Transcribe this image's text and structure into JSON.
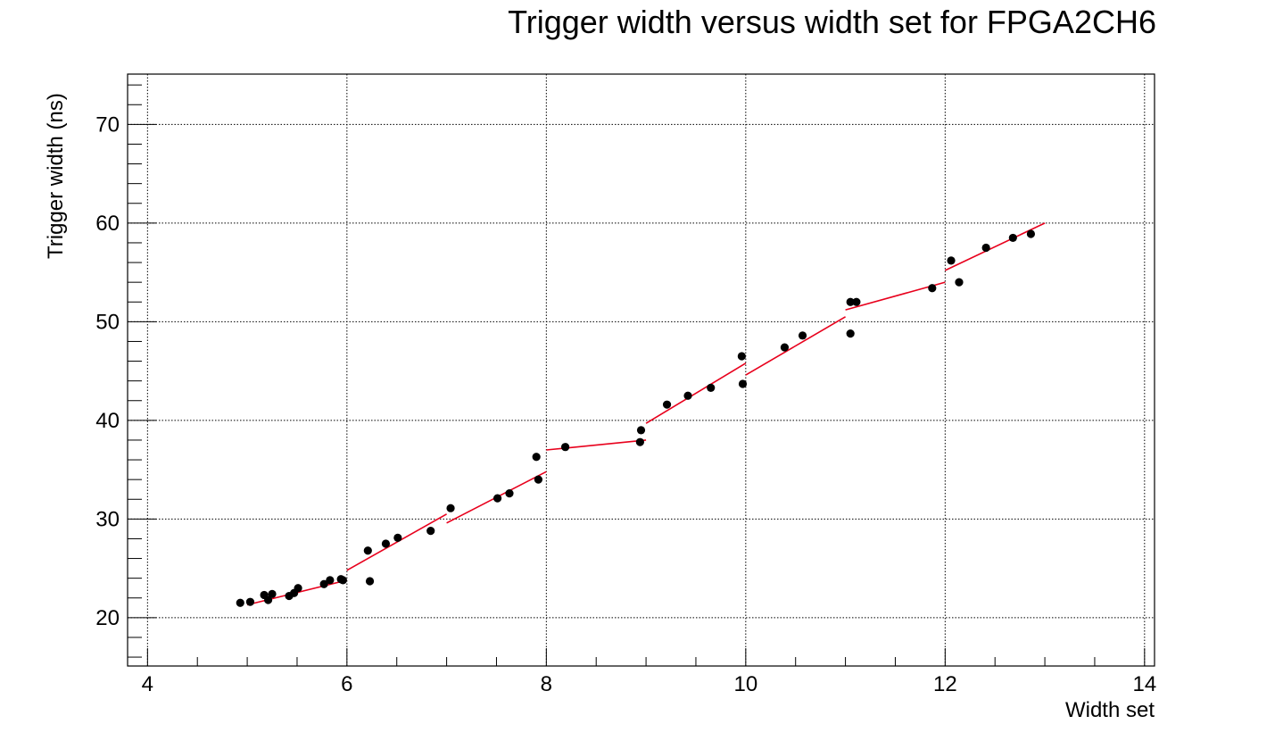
{
  "chart_data": {
    "type": "scatter",
    "title": "Trigger width versus width set for FPGA2CH6",
    "xlabel": "Width set",
    "ylabel": "Trigger width (ns)",
    "xlim": [
      3.8,
      14.1
    ],
    "ylim": [
      15.1,
      75.1
    ],
    "xticks": [
      4,
      6,
      8,
      10,
      12,
      14
    ],
    "yticks": [
      20,
      30,
      40,
      50,
      60,
      70
    ],
    "grid": true,
    "marker_color": "#000000",
    "fit_color": "#e8001c",
    "points": [
      {
        "x": 4.93,
        "y": 21.5
      },
      {
        "x": 5.03,
        "y": 21.6
      },
      {
        "x": 5.17,
        "y": 22.3
      },
      {
        "x": 5.21,
        "y": 21.8
      },
      {
        "x": 5.25,
        "y": 22.4
      },
      {
        "x": 5.42,
        "y": 22.2
      },
      {
        "x": 5.47,
        "y": 22.5
      },
      {
        "x": 5.51,
        "y": 23.0
      },
      {
        "x": 5.77,
        "y": 23.4
      },
      {
        "x": 5.83,
        "y": 23.8
      },
      {
        "x": 5.94,
        "y": 23.9
      },
      {
        "x": 5.96,
        "y": 23.8
      },
      {
        "x": 6.21,
        "y": 26.8
      },
      {
        "x": 6.23,
        "y": 23.7
      },
      {
        "x": 6.39,
        "y": 27.5
      },
      {
        "x": 6.51,
        "y": 28.1
      },
      {
        "x": 6.84,
        "y": 28.8
      },
      {
        "x": 7.04,
        "y": 31.1
      },
      {
        "x": 7.51,
        "y": 32.1
      },
      {
        "x": 7.63,
        "y": 32.6
      },
      {
        "x": 7.9,
        "y": 36.3
      },
      {
        "x": 7.92,
        "y": 34.0
      },
      {
        "x": 8.19,
        "y": 37.3
      },
      {
        "x": 8.94,
        "y": 37.8
      },
      {
        "x": 8.95,
        "y": 39.0
      },
      {
        "x": 9.21,
        "y": 41.6
      },
      {
        "x": 9.42,
        "y": 42.5
      },
      {
        "x": 9.65,
        "y": 43.3
      },
      {
        "x": 9.96,
        "y": 46.5
      },
      {
        "x": 9.97,
        "y": 43.7
      },
      {
        "x": 10.39,
        "y": 47.4
      },
      {
        "x": 10.57,
        "y": 48.6
      },
      {
        "x": 11.05,
        "y": 48.8
      },
      {
        "x": 11.05,
        "y": 52.0
      },
      {
        "x": 11.11,
        "y": 52.0
      },
      {
        "x": 11.87,
        "y": 53.4
      },
      {
        "x": 12.06,
        "y": 56.2
      },
      {
        "x": 12.14,
        "y": 54.0
      },
      {
        "x": 12.41,
        "y": 57.5
      },
      {
        "x": 12.68,
        "y": 58.5
      },
      {
        "x": 12.86,
        "y": 58.9
      }
    ],
    "fit_segments": [
      {
        "x": [
          5.0,
          6.0
        ],
        "y": [
          21.3,
          23.8
        ]
      },
      {
        "x": [
          6.0,
          7.0
        ],
        "y": [
          24.8,
          30.5
        ]
      },
      {
        "x": [
          7.0,
          8.0
        ],
        "y": [
          29.6,
          34.8
        ]
      },
      {
        "x": [
          8.0,
          9.0
        ],
        "y": [
          37.0,
          38.0
        ]
      },
      {
        "x": [
          9.0,
          10.0
        ],
        "y": [
          39.7,
          45.8
        ]
      },
      {
        "x": [
          10.0,
          11.0
        ],
        "y": [
          44.6,
          50.5
        ]
      },
      {
        "x": [
          11.0,
          12.0
        ],
        "y": [
          51.2,
          54.0
        ]
      },
      {
        "x": [
          12.0,
          13.0
        ],
        "y": [
          55.2,
          60.0
        ]
      }
    ]
  }
}
